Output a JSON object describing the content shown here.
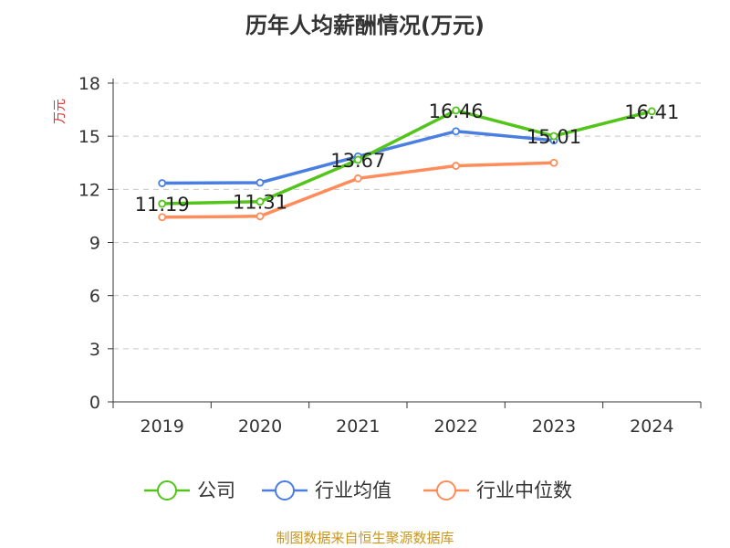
{
  "chart_data": {
    "type": "line",
    "title": "历年人均薪酬情况(万元)",
    "ylabel": "万元",
    "categories": [
      "2019",
      "2020",
      "2021",
      "2022",
      "2023",
      "2024"
    ],
    "ylim": [
      0,
      18
    ],
    "yticks": [
      0,
      3,
      6,
      9,
      12,
      15,
      18
    ],
    "grid": true,
    "legend_position": "bottom",
    "series": [
      {
        "name": "公司",
        "color": "#52c41a",
        "values": [
          11.19,
          11.31,
          13.67,
          16.46,
          15.01,
          16.41
        ],
        "labels": [
          "11.19",
          "11.31",
          "13.67",
          "16.46",
          "15.01",
          "16.41"
        ]
      },
      {
        "name": "行业均值",
        "color": "#4a7ee0",
        "values": [
          12.35,
          12.38,
          13.86,
          15.28,
          14.76,
          null
        ]
      },
      {
        "name": "行业中位数",
        "color": "#ff8c5a",
        "values": [
          10.43,
          10.48,
          12.62,
          13.33,
          13.5,
          null
        ]
      }
    ]
  },
  "footer": "制图数据来自恒生聚源数据库"
}
